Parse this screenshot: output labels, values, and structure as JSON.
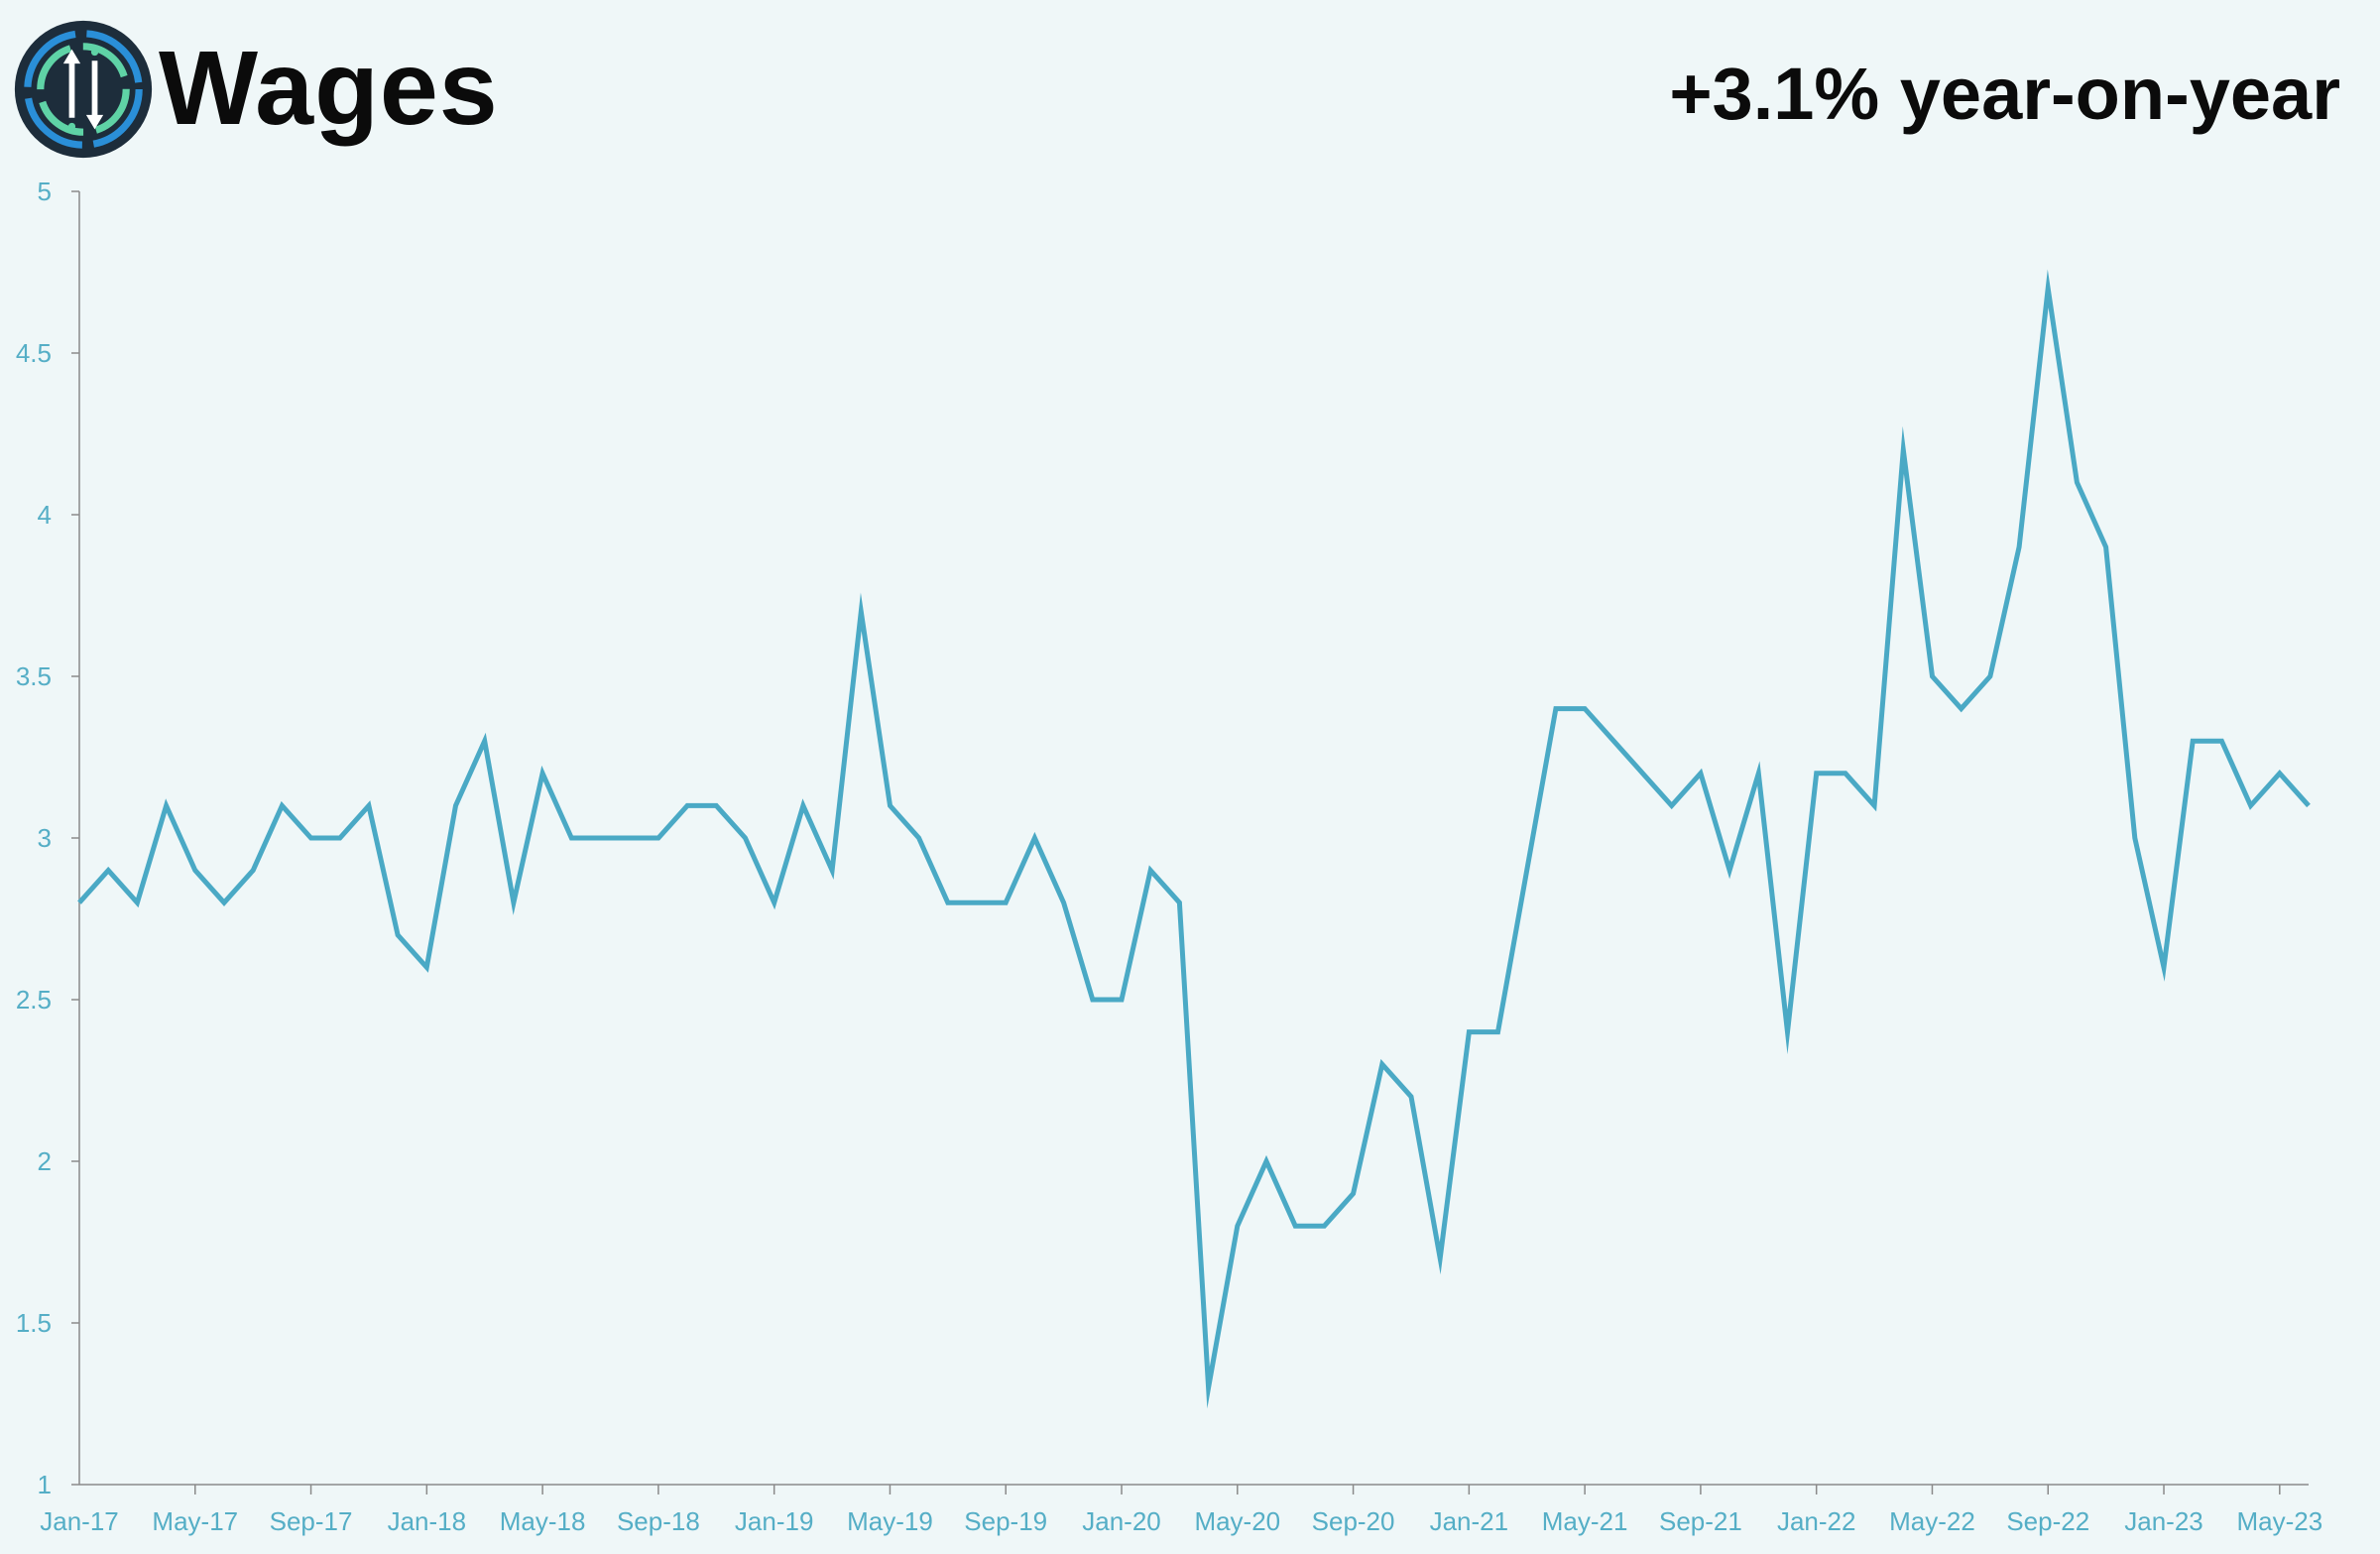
{
  "header": {
    "title": "Wages",
    "stat": "+3.1% year-on-year",
    "logo_icon": "up-down-arrows-logo-icon"
  },
  "colors": {
    "background": "#eff7f8",
    "line": "#4aa9c5",
    "axis": "#8a8a8a",
    "tick_text": "#55aec6",
    "logo_ring_dark": "#1a2a38",
    "logo_ring_blue": "#2a8fd8",
    "logo_ring_green": "#5fd3a6"
  },
  "chart_data": {
    "type": "line",
    "title": "",
    "xlabel": "",
    "ylabel": "",
    "ylim": [
      1,
      5
    ],
    "yticks": [
      "1",
      "1.5",
      "2",
      "2.5",
      "3",
      "3.5",
      "4",
      "4.5",
      "5"
    ],
    "grid": false,
    "legend": "none",
    "x_tick_labels": [
      "Jan-17",
      "May-17",
      "Sep-17",
      "Jan-18",
      "May-18",
      "Sep-18",
      "Jan-19",
      "May-19",
      "Sep-19",
      "Jan-20",
      "May-20",
      "Sep-20",
      "Jan-21",
      "May-21",
      "Sep-21",
      "Jan-22",
      "May-22",
      "Sep-22",
      "Jan-23",
      "May-23"
    ],
    "x_start": "Jan-17",
    "x_end": "Jul-23",
    "series": [
      {
        "values": [
          2.8,
          2.9,
          2.8,
          3.1,
          2.9,
          2.8,
          2.9,
          3.1,
          3.0,
          3.0,
          3.1,
          2.7,
          2.6,
          3.1,
          3.3,
          2.8,
          3.2,
          3.0,
          3.0,
          3.0,
          3.0,
          3.1,
          3.1,
          3.0,
          2.8,
          3.1,
          2.9,
          3.7,
          3.1,
          3.0,
          2.8,
          2.8,
          2.8,
          3.0,
          2.8,
          2.5,
          2.5,
          2.9,
          2.8,
          1.3,
          1.8,
          2.0,
          1.8,
          1.8,
          1.9,
          2.3,
          2.2,
          1.7,
          2.4,
          2.4,
          2.9,
          3.4,
          3.4,
          3.3,
          3.2,
          3.1,
          3.2,
          2.9,
          3.2,
          2.4,
          3.2,
          3.2,
          3.1,
          4.2,
          3.5,
          3.4,
          3.5,
          3.9,
          4.7,
          4.1,
          3.9,
          3.0,
          2.6,
          3.3,
          3.3,
          3.1,
          3.2,
          3.1
        ]
      }
    ]
  }
}
